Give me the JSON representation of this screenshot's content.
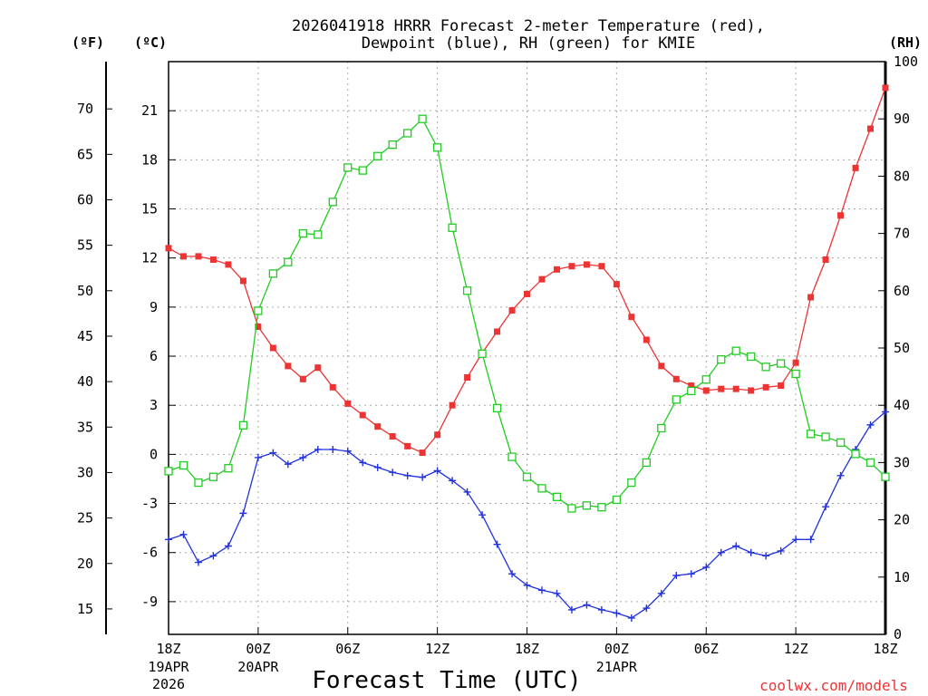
{
  "chart_data": {
    "type": "line",
    "title_lines": [
      "2026041918 HRRR Forecast 2-meter Temperature (red),",
      "Dewpoint (blue), RH (green) for KMIE"
    ],
    "xlabel": "Forecast Time (UTC)",
    "credit": "coolwx.com/models",
    "units": {
      "fahrenheit": "(ºF)",
      "celsius": "(ºC)",
      "rh": "(RH)"
    },
    "x_range_hours": [
      0,
      48
    ],
    "x_ticks": [
      {
        "hour": 0,
        "label": "18Z",
        "date1": "19APR",
        "date2": "2026"
      },
      {
        "hour": 6,
        "label": "00Z",
        "date1": "20APR",
        "date2": ""
      },
      {
        "hour": 12,
        "label": "06Z",
        "date1": "",
        "date2": ""
      },
      {
        "hour": 18,
        "label": "12Z",
        "date1": "",
        "date2": ""
      },
      {
        "hour": 24,
        "label": "18Z",
        "date1": "",
        "date2": ""
      },
      {
        "hour": 30,
        "label": "00Z",
        "date1": "21APR",
        "date2": ""
      },
      {
        "hour": 36,
        "label": "06Z",
        "date1": "",
        "date2": ""
      },
      {
        "hour": 42,
        "label": "12Z",
        "date1": "",
        "date2": ""
      },
      {
        "hour": 48,
        "label": "18Z",
        "date1": "",
        "date2": ""
      }
    ],
    "celsius_axis": {
      "range": [
        -11,
        24
      ],
      "ticks": [
        -9,
        -6,
        -3,
        0,
        3,
        6,
        9,
        12,
        15,
        18,
        21
      ]
    },
    "fahrenheit_ticks": [
      15,
      20,
      25,
      30,
      35,
      40,
      45,
      50,
      55,
      60,
      65,
      70
    ],
    "rh_axis": {
      "range": [
        0,
        100
      ],
      "ticks": [
        0,
        10,
        20,
        30,
        40,
        50,
        60,
        70,
        80,
        90,
        100
      ]
    },
    "series": [
      {
        "name": "2-meter Temperature",
        "color": "#ee3333",
        "marker": "filled-square",
        "axis": "celsius",
        "values": [
          12.6,
          12.1,
          12.1,
          11.9,
          11.6,
          10.6,
          7.8,
          6.5,
          5.4,
          4.6,
          5.3,
          4.1,
          3.1,
          2.4,
          1.7,
          1.1,
          0.5,
          0.1,
          1.2,
          3.0,
          4.7,
          6.2,
          7.5,
          8.8,
          9.8,
          10.7,
          11.3,
          11.5,
          11.6,
          11.5,
          10.4,
          8.4,
          7.0,
          5.4,
          4.6,
          4.2,
          3.9,
          4.0,
          4.0,
          3.9,
          4.1,
          4.2,
          5.6,
          9.6,
          11.9,
          14.6,
          17.5,
          19.9,
          22.4
        ]
      },
      {
        "name": "Dewpoint",
        "color": "#2233dd",
        "marker": "plus",
        "axis": "celsius",
        "values": [
          -5.2,
          -4.9,
          -6.6,
          -6.2,
          -5.6,
          -3.6,
          -0.2,
          0.1,
          -0.6,
          -0.2,
          0.3,
          0.3,
          0.2,
          -0.5,
          -0.8,
          -1.1,
          -1.3,
          -1.4,
          -1.0,
          -1.6,
          -2.3,
          -3.7,
          -5.5,
          -7.3,
          -8.0,
          -8.3,
          -8.5,
          -9.5,
          -9.2,
          -9.5,
          -9.7,
          -10.0,
          -9.4,
          -8.5,
          -7.4,
          -7.3,
          -6.9,
          -6.0,
          -5.6,
          -6.0,
          -6.2,
          -5.9,
          -5.2,
          -5.2,
          -3.2,
          -1.3,
          0.3,
          1.8,
          2.6
        ]
      },
      {
        "name": "RH",
        "color": "#22cc22",
        "marker": "open-square",
        "axis": "rh",
        "values": [
          28.5,
          29.5,
          26.5,
          27.5,
          29,
          36.5,
          56.5,
          63,
          65,
          70,
          69.8,
          75.5,
          81.5,
          81,
          83.5,
          85.5,
          87.5,
          90,
          85,
          71,
          60,
          49,
          39.5,
          31,
          27.5,
          25.5,
          24,
          22,
          22.5,
          22.2,
          23.5,
          26.5,
          30,
          36,
          41,
          42.5,
          44.5,
          48,
          49.5,
          48.5,
          46.7,
          47.3,
          45.5,
          35,
          34.5,
          33.5,
          31.5,
          30,
          27.5
        ]
      }
    ]
  }
}
